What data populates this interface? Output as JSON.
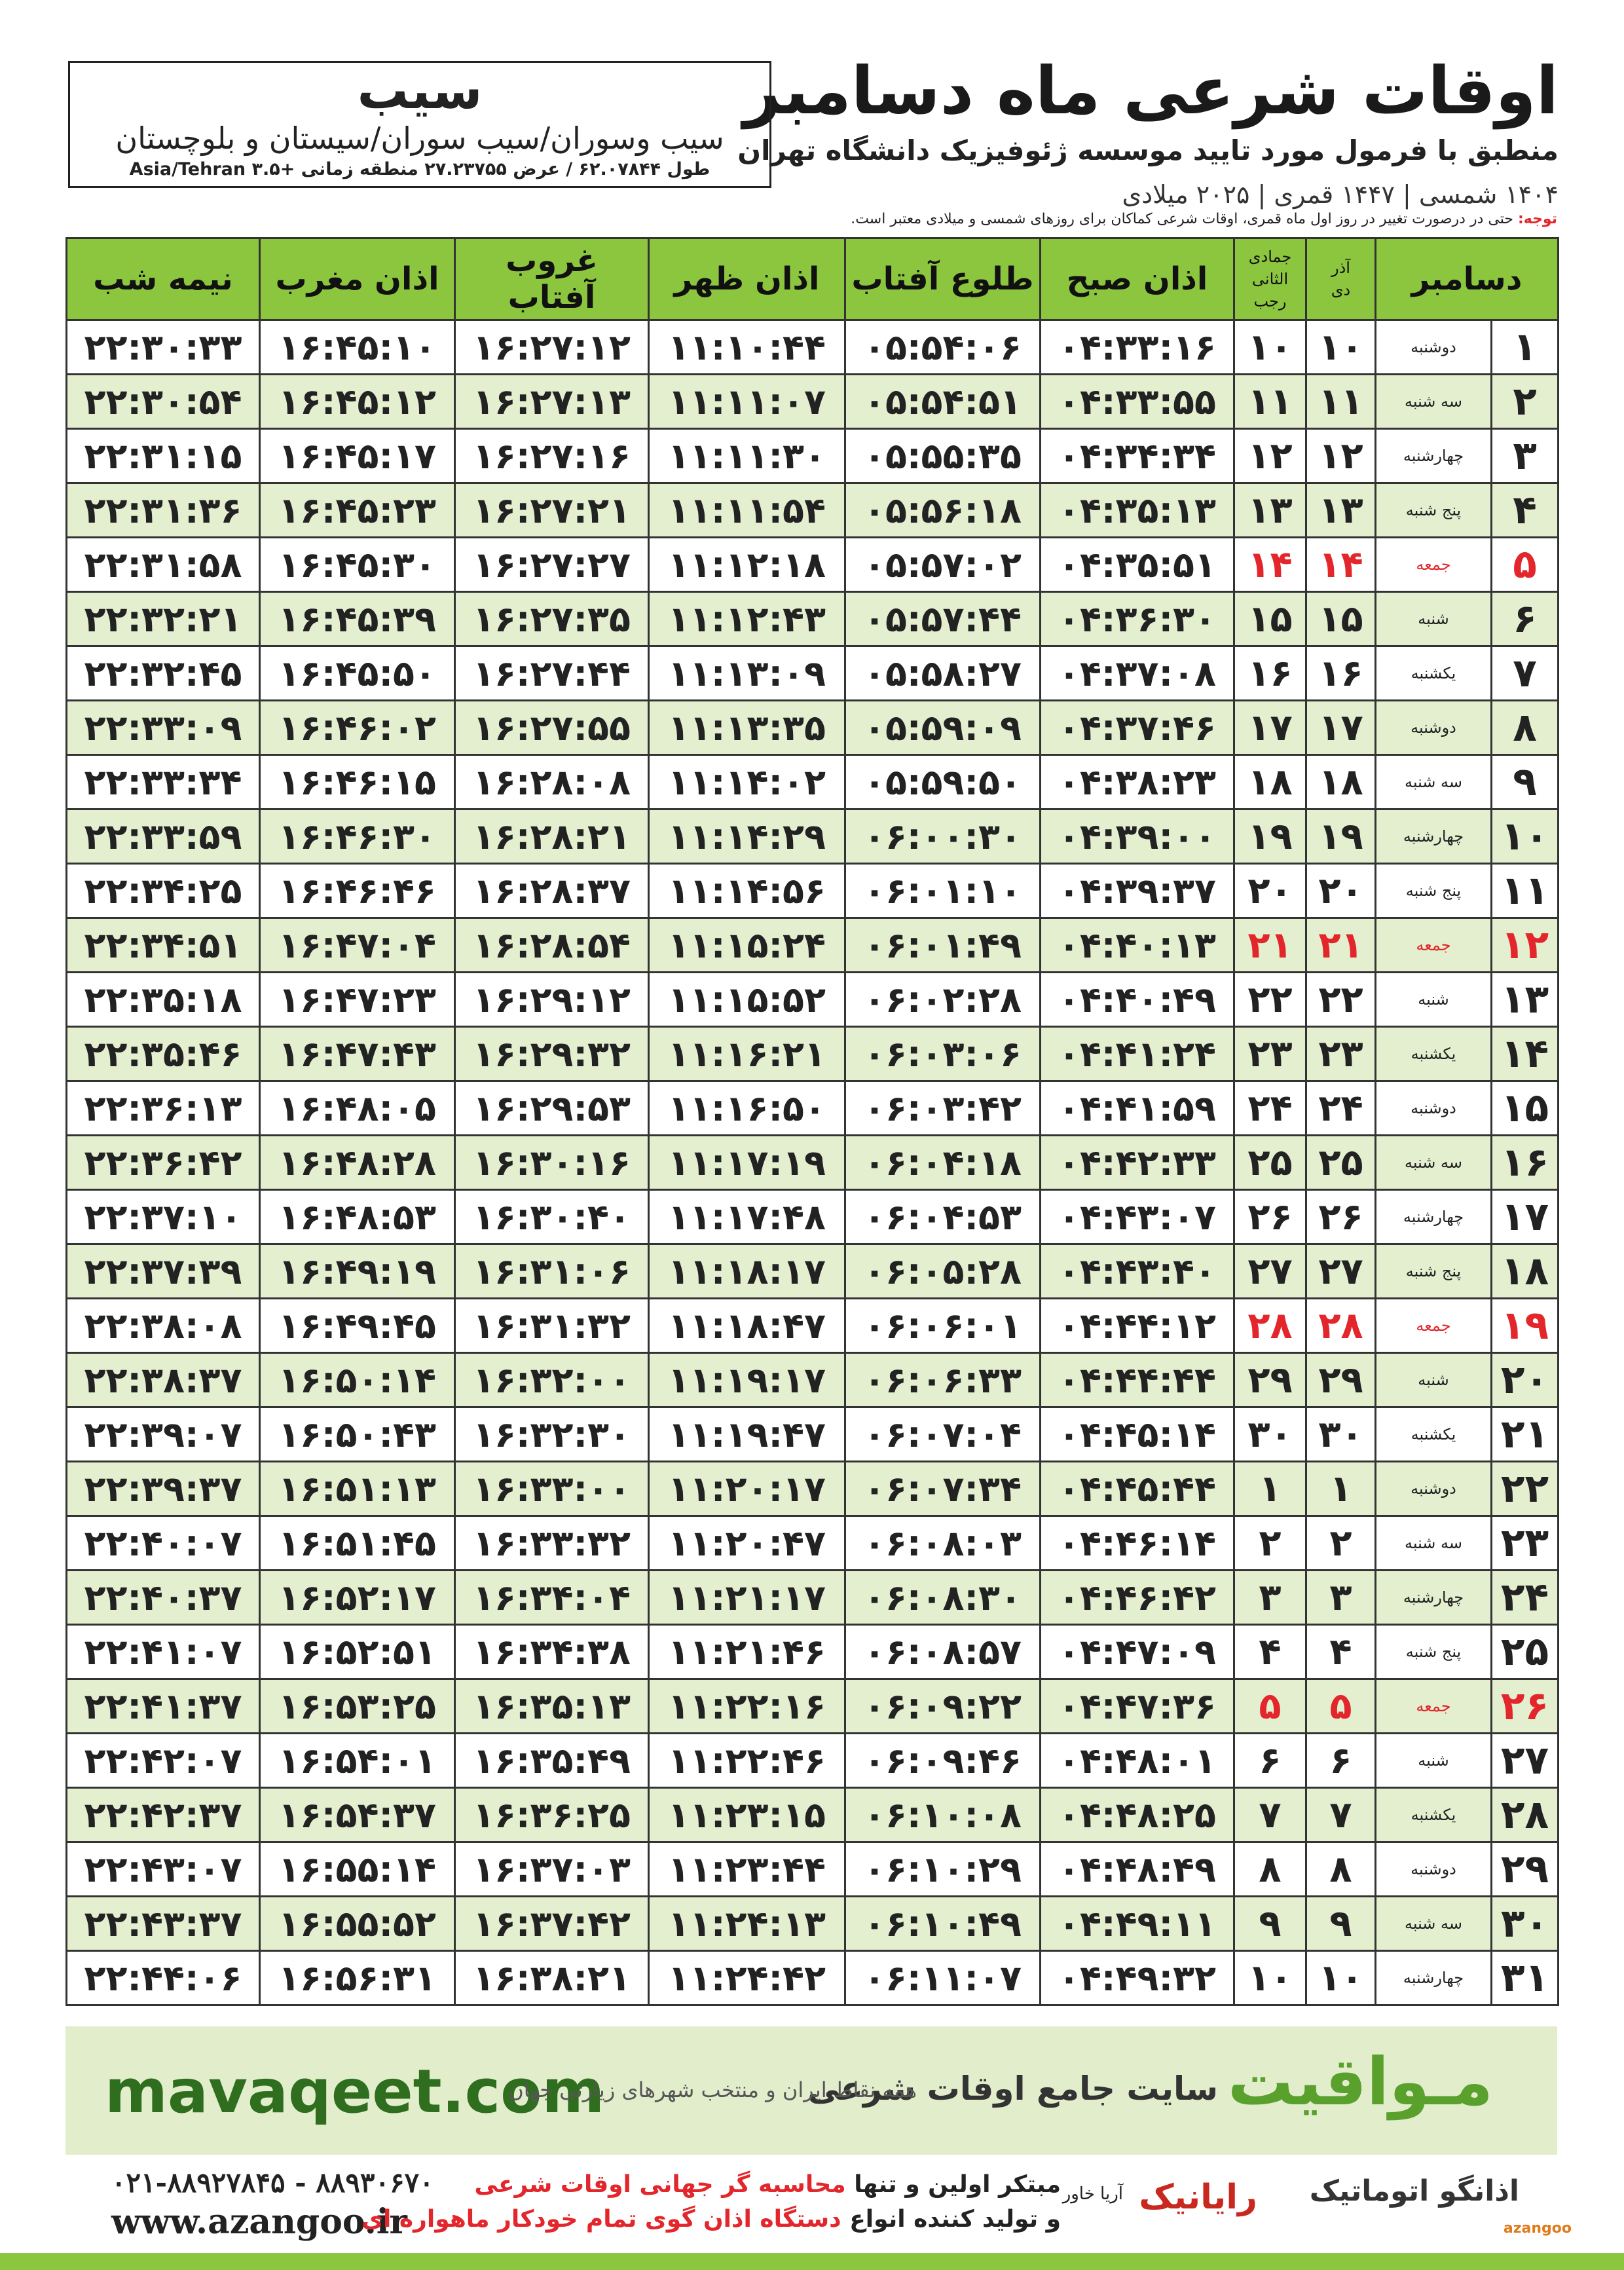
{
  "header": {
    "title": "اوقات شرعی ماه دسامبر",
    "subtitle": "منطبق با فرمول مورد تایید موسسه ژئوفیزیک دانشگاه تهران",
    "dates": "۱۴۰۴ شمسی | ۱۴۴۷ قمری | ۲۰۲۵ میلادی"
  },
  "city": {
    "name": "سیب",
    "region": "سیب وسوران/سیب سوران/سیستان و بلوچستان",
    "coords": "طول ۶۲.۰۷۸۴۴ / عرض ۲۷.۲۳۷۵۵ منطقه زمانی +۳.۵ Asia/Tehran"
  },
  "note": {
    "label": "توجه:",
    "text": "حتی در درصورت تغییر در روز اول ماه قمری، اوقات شرعی کماکان برای روزهای شمسی و میلادی معتبر است."
  },
  "table": {
    "header": [
      "دسامبر",
      {
        "top": "آذر",
        "bottom": "دی"
      },
      {
        "top": "جمادی الثانی",
        "bottom": "رجب"
      },
      "اذان صبح",
      "طلوع آفتاب",
      "اذان ظهر",
      "غروب آفتاب",
      "اذان مغرب",
      "نیمه شب"
    ],
    "rows": [
      {
        "cells": [
          "۱",
          "دوشنبه",
          "۱۰",
          "۱۰",
          "۰۴:۳۳:۱۶",
          "۰۵:۵۴:۰۶",
          "۱۱:۱۰:۴۴",
          "۱۶:۲۷:۱۲",
          "۱۶:۴۵:۱۰",
          "۲۲:۳۰:۳۳"
        ]
      },
      {
        "cells": [
          "۲",
          "سه شنبه",
          "۱۱",
          "۱۱",
          "۰۴:۳۳:۵۵",
          "۰۵:۵۴:۵۱",
          "۱۱:۱۱:۰۷",
          "۱۶:۲۷:۱۳",
          "۱۶:۴۵:۱۲",
          "۲۲:۳۰:۵۴"
        ]
      },
      {
        "cells": [
          "۳",
          "چهارشنبه",
          "۱۲",
          "۱۲",
          "۰۴:۳۴:۳۴",
          "۰۵:۵۵:۳۵",
          "۱۱:۱۱:۳۰",
          "۱۶:۲۷:۱۶",
          "۱۶:۴۵:۱۷",
          "۲۲:۳۱:۱۵"
        ]
      },
      {
        "cells": [
          "۴",
          "پنج شنبه",
          "۱۳",
          "۱۳",
          "۰۴:۳۵:۱۳",
          "۰۵:۵۶:۱۸",
          "۱۱:۱۱:۵۴",
          "۱۶:۲۷:۲۱",
          "۱۶:۴۵:۲۳",
          "۲۲:۳۱:۳۶"
        ]
      },
      {
        "cells": [
          "۵",
          "جمعه",
          "۱۴",
          "۱۴",
          "۰۴:۳۵:۵۱",
          "۰۵:۵۷:۰۲",
          "۱۱:۱۲:۱۸",
          "۱۶:۲۷:۲۷",
          "۱۶:۴۵:۳۰",
          "۲۲:۳۱:۵۸"
        ],
        "color": "#e3262b"
      },
      {
        "cells": [
          "۶",
          "شنبه",
          "۱۵",
          "۱۵",
          "۰۴:۳۶:۳۰",
          "۰۵:۵۷:۴۴",
          "۱۱:۱۲:۴۳",
          "۱۶:۲۷:۳۵",
          "۱۶:۴۵:۳۹",
          "۲۲:۳۲:۲۱"
        ]
      },
      {
        "cells": [
          "۷",
          "یکشنبه",
          "۱۶",
          "۱۶",
          "۰۴:۳۷:۰۸",
          "۰۵:۵۸:۲۷",
          "۱۱:۱۳:۰۹",
          "۱۶:۲۷:۴۴",
          "۱۶:۴۵:۵۰",
          "۲۲:۳۲:۴۵"
        ]
      },
      {
        "cells": [
          "۸",
          "دوشنبه",
          "۱۷",
          "۱۷",
          "۰۴:۳۷:۴۶",
          "۰۵:۵۹:۰۹",
          "۱۱:۱۳:۳۵",
          "۱۶:۲۷:۵۵",
          "۱۶:۴۶:۰۲",
          "۲۲:۳۳:۰۹"
        ]
      },
      {
        "cells": [
          "۹",
          "سه شنبه",
          "۱۸",
          "۱۸",
          "۰۴:۳۸:۲۳",
          "۰۵:۵۹:۵۰",
          "۱۱:۱۴:۰۲",
          "۱۶:۲۸:۰۸",
          "۱۶:۴۶:۱۵",
          "۲۲:۳۳:۳۴"
        ]
      },
      {
        "cells": [
          "۱۰",
          "چهارشنبه",
          "۱۹",
          "۱۹",
          "۰۴:۳۹:۰۰",
          "۰۶:۰۰:۳۰",
          "۱۱:۱۴:۲۹",
          "۱۶:۲۸:۲۱",
          "۱۶:۴۶:۳۰",
          "۲۲:۳۳:۵۹"
        ]
      },
      {
        "cells": [
          "۱۱",
          "پنج شنبه",
          "۲۰",
          "۲۰",
          "۰۴:۳۹:۳۷",
          "۰۶:۰۱:۱۰",
          "۱۱:۱۴:۵۶",
          "۱۶:۲۸:۳۷",
          "۱۶:۴۶:۴۶",
          "۲۲:۳۴:۲۵"
        ]
      },
      {
        "cells": [
          "۱۲",
          "جمعه",
          "۲۱",
          "۲۱",
          "۰۴:۴۰:۱۳",
          "۰۶:۰۱:۴۹",
          "۱۱:۱۵:۲۴",
          "۱۶:۲۸:۵۴",
          "۱۶:۴۷:۰۴",
          "۲۲:۳۴:۵۱"
        ],
        "color": "#e3262b"
      },
      {
        "cells": [
          "۱۳",
          "شنبه",
          "۲۲",
          "۲۲",
          "۰۴:۴۰:۴۹",
          "۰۶:۰۲:۲۸",
          "۱۱:۱۵:۵۲",
          "۱۶:۲۹:۱۲",
          "۱۶:۴۷:۲۳",
          "۲۲:۳۵:۱۸"
        ]
      },
      {
        "cells": [
          "۱۴",
          "یکشنبه",
          "۲۳",
          "۲۳",
          "۰۴:۴۱:۲۴",
          "۰۶:۰۳:۰۶",
          "۱۱:۱۶:۲۱",
          "۱۶:۲۹:۳۲",
          "۱۶:۴۷:۴۳",
          "۲۲:۳۵:۴۶"
        ]
      },
      {
        "cells": [
          "۱۵",
          "دوشنبه",
          "۲۴",
          "۲۴",
          "۰۴:۴۱:۵۹",
          "۰۶:۰۳:۴۲",
          "۱۱:۱۶:۵۰",
          "۱۶:۲۹:۵۳",
          "۱۶:۴۸:۰۵",
          "۲۲:۳۶:۱۳"
        ]
      },
      {
        "cells": [
          "۱۶",
          "سه شنبه",
          "۲۵",
          "۲۵",
          "۰۴:۴۲:۳۳",
          "۰۶:۰۴:۱۸",
          "۱۱:۱۷:۱۹",
          "۱۶:۳۰:۱۶",
          "۱۶:۴۸:۲۸",
          "۲۲:۳۶:۴۲"
        ]
      },
      {
        "cells": [
          "۱۷",
          "چهارشنبه",
          "۲۶",
          "۲۶",
          "۰۴:۴۳:۰۷",
          "۰۶:۰۴:۵۳",
          "۱۱:۱۷:۴۸",
          "۱۶:۳۰:۴۰",
          "۱۶:۴۸:۵۳",
          "۲۲:۳۷:۱۰"
        ]
      },
      {
        "cells": [
          "۱۸",
          "پنج شنبه",
          "۲۷",
          "۲۷",
          "۰۴:۴۳:۴۰",
          "۰۶:۰۵:۲۸",
          "۱۱:۱۸:۱۷",
          "۱۶:۳۱:۰۶",
          "۱۶:۴۹:۱۹",
          "۲۲:۳۷:۳۹"
        ]
      },
      {
        "cells": [
          "۱۹",
          "جمعه",
          "۲۸",
          "۲۸",
          "۰۴:۴۴:۱۲",
          "۰۶:۰۶:۰۱",
          "۱۱:۱۸:۴۷",
          "۱۶:۳۱:۳۲",
          "۱۶:۴۹:۴۵",
          "۲۲:۳۸:۰۸"
        ],
        "color": "#e3262b"
      },
      {
        "cells": [
          "۲۰",
          "شنبه",
          "۲۹",
          "۲۹",
          "۰۴:۴۴:۴۴",
          "۰۶:۰۶:۳۳",
          "۱۱:۱۹:۱۷",
          "۱۶:۳۲:۰۰",
          "۱۶:۵۰:۱۴",
          "۲۲:۳۸:۳۷"
        ]
      },
      {
        "cells": [
          "۲۱",
          "یکشنبه",
          "۳۰",
          "۳۰",
          "۰۴:۴۵:۱۴",
          "۰۶:۰۷:۰۴",
          "۱۱:۱۹:۴۷",
          "۱۶:۳۲:۳۰",
          "۱۶:۵۰:۴۳",
          "۲۲:۳۹:۰۷"
        ]
      },
      {
        "cells": [
          "۲۲",
          "دوشنبه",
          "۱",
          "۱",
          "۰۴:۴۵:۴۴",
          "۰۶:۰۷:۳۴",
          "۱۱:۲۰:۱۷",
          "۱۶:۳۳:۰۰",
          "۱۶:۵۱:۱۳",
          "۲۲:۳۹:۳۷"
        ]
      },
      {
        "cells": [
          "۲۳",
          "سه شنبه",
          "۲",
          "۲",
          "۰۴:۴۶:۱۴",
          "۰۶:۰۸:۰۳",
          "۱۱:۲۰:۴۷",
          "۱۶:۳۳:۳۲",
          "۱۶:۵۱:۴۵",
          "۲۲:۴۰:۰۷"
        ]
      },
      {
        "cells": [
          "۲۴",
          "چهارشنبه",
          "۳",
          "۳",
          "۰۴:۴۶:۴۲",
          "۰۶:۰۸:۳۰",
          "۱۱:۲۱:۱۷",
          "۱۶:۳۴:۰۴",
          "۱۶:۵۲:۱۷",
          "۲۲:۴۰:۳۷"
        ]
      },
      {
        "cells": [
          "۲۵",
          "پنج شنبه",
          "۴",
          "۴",
          "۰۴:۴۷:۰۹",
          "۰۶:۰۸:۵۷",
          "۱۱:۲۱:۴۶",
          "۱۶:۳۴:۳۸",
          "۱۶:۵۲:۵۱",
          "۲۲:۴۱:۰۷"
        ]
      },
      {
        "cells": [
          "۲۶",
          "جمعه",
          "۵",
          "۵",
          "۰۴:۴۷:۳۶",
          "۰۶:۰۹:۲۲",
          "۱۱:۲۲:۱۶",
          "۱۶:۳۵:۱۳",
          "۱۶:۵۳:۲۵",
          "۲۲:۴۱:۳۷"
        ],
        "color": "#e3262b"
      },
      {
        "cells": [
          "۲۷",
          "شنبه",
          "۶",
          "۶",
          "۰۴:۴۸:۰۱",
          "۰۶:۰۹:۴۶",
          "۱۱:۲۲:۴۶",
          "۱۶:۳۵:۴۹",
          "۱۶:۵۴:۰۱",
          "۲۲:۴۲:۰۷"
        ]
      },
      {
        "cells": [
          "۲۸",
          "یکشنبه",
          "۷",
          "۷",
          "۰۴:۴۸:۲۵",
          "۰۶:۱۰:۰۸",
          "۱۱:۲۳:۱۵",
          "۱۶:۳۶:۲۵",
          "۱۶:۵۴:۳۷",
          "۲۲:۴۲:۳۷"
        ]
      },
      {
        "cells": [
          "۲۹",
          "دوشنبه",
          "۸",
          "۸",
          "۰۴:۴۸:۴۹",
          "۰۶:۱۰:۲۹",
          "۱۱:۲۳:۴۴",
          "۱۶:۳۷:۰۳",
          "۱۶:۵۵:۱۴",
          "۲۲:۴۳:۰۷"
        ]
      },
      {
        "cells": [
          "۳۰",
          "سه شنبه",
          "۹",
          "۹",
          "۰۴:۴۹:۱۱",
          "۰۶:۱۰:۴۹",
          "۱۱:۲۴:۱۳",
          "۱۶:۳۷:۴۲",
          "۱۶:۵۵:۵۲",
          "۲۲:۴۳:۳۷"
        ]
      },
      {
        "cells": [
          "۳۱",
          "چهارشنبه",
          "۱۰",
          "۱۰",
          "۰۴:۴۹:۳۲",
          "۰۶:۱۱:۰۷",
          "۱۱:۲۴:۴۲",
          "۱۶:۳۸:۲۱",
          "۱۶:۵۶:۳۱",
          "۲۲:۴۴:۰۶"
        ]
      }
    ]
  },
  "banner": {
    "url": "mavaqeet.com",
    "brand": "مـواقیت",
    "slogan": "سایت جامع اوقات شرعی",
    "tagline": "همه نقاط ایران و منتخب شهرهای زیارتی جهان"
  },
  "footer": {
    "phone": "۰۲۱-۸۸۹۲۷۸۴۵ - ۸۸۹۳۰۶۷۰",
    "website": "www.azangoo.ir",
    "line1_prefix": "مبتکر اولین و تنها",
    "line1_highlight": "محاسبه گر جهانی اوقات شرعی",
    "line2_prefix": "و تولید کننده انواع",
    "line2_highlight": "دستگاه اذان گوی تمام خودکار ماهواره ای",
    "logo1": "رایانیک",
    "logo1_sub": "آریا خاور",
    "logo2": "اذانگو اتوماتیک",
    "logo2_sub": "azangoo"
  }
}
